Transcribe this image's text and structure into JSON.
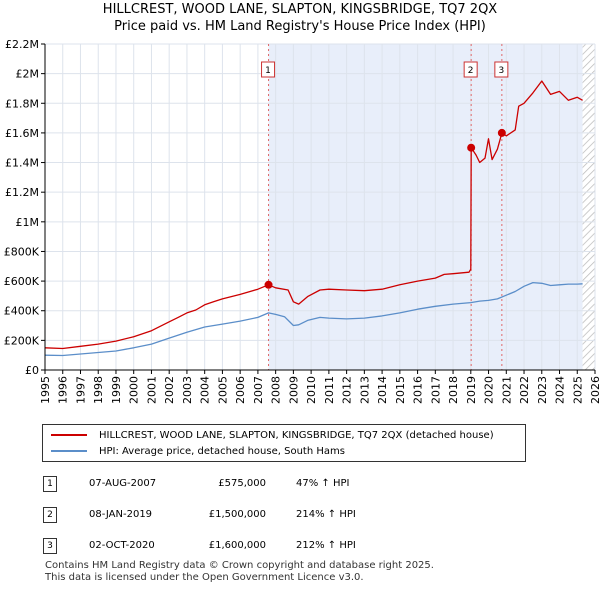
{
  "chart_data": {
    "type": "line",
    "title": "HILLCREST, WOOD LANE, SLAPTON, KINGSBRIDGE, TQ7 2QX",
    "subtitle": "Price paid vs. HM Land Registry's House Price Index (HPI)",
    "xlim": [
      1995,
      2026
    ],
    "ylim": [
      0,
      2200000
    ],
    "y_ticks": [
      {
        "value": 0,
        "label": "£0"
      },
      {
        "value": 200000,
        "label": "£200K"
      },
      {
        "value": 400000,
        "label": "£400K"
      },
      {
        "value": 600000,
        "label": "£600K"
      },
      {
        "value": 800000,
        "label": "£800K"
      },
      {
        "value": 1000000,
        "label": "£1M"
      },
      {
        "value": 1200000,
        "label": "£1.2M"
      },
      {
        "value": 1400000,
        "label": "£1.4M"
      },
      {
        "value": 1600000,
        "label": "£1.6M"
      },
      {
        "value": 1800000,
        "label": "£1.8M"
      },
      {
        "value": 2000000,
        "label": "£2M"
      },
      {
        "value": 2200000,
        "label": "£2.2M"
      }
    ],
    "x_ticks": [
      "1995",
      "1996",
      "1997",
      "1998",
      "1999",
      "2000",
      "2001",
      "2002",
      "2003",
      "2004",
      "2005",
      "2006",
      "2007",
      "2008",
      "2009",
      "2010",
      "2011",
      "2012",
      "2013",
      "2014",
      "2015",
      "2016",
      "2017",
      "2018",
      "2019",
      "2020",
      "2021",
      "2022",
      "2023",
      "2024",
      "2025",
      "2026"
    ],
    "shaded_region": [
      2007.6,
      2025.3
    ],
    "hatched_region": [
      2025.3,
      2026
    ],
    "series": [
      {
        "name": "HILLCREST, WOOD LANE, SLAPTON, KINGSBRIDGE, TQ7 2QX (detached house)",
        "color": "#cc0000",
        "points": [
          [
            1995.0,
            150000
          ],
          [
            1996.0,
            145000
          ],
          [
            1997.0,
            160000
          ],
          [
            1998.0,
            175000
          ],
          [
            1999.0,
            195000
          ],
          [
            2000.0,
            225000
          ],
          [
            2001.0,
            265000
          ],
          [
            2002.0,
            325000
          ],
          [
            2002.5,
            355000
          ],
          [
            2003.0,
            385000
          ],
          [
            2003.5,
            405000
          ],
          [
            2004.0,
            440000
          ],
          [
            2004.5,
            460000
          ],
          [
            2005.0,
            480000
          ],
          [
            2006.0,
            510000
          ],
          [
            2007.0,
            545000
          ],
          [
            2007.6,
            575000
          ],
          [
            2008.0,
            555000
          ],
          [
            2008.7,
            540000
          ],
          [
            2009.0,
            460000
          ],
          [
            2009.3,
            445000
          ],
          [
            2009.8,
            495000
          ],
          [
            2010.5,
            540000
          ],
          [
            2011.0,
            545000
          ],
          [
            2012.0,
            540000
          ],
          [
            2013.0,
            535000
          ],
          [
            2014.0,
            545000
          ],
          [
            2015.0,
            575000
          ],
          [
            2016.0,
            600000
          ],
          [
            2017.0,
            620000
          ],
          [
            2017.5,
            645000
          ],
          [
            2018.0,
            650000
          ],
          [
            2018.9,
            660000
          ],
          [
            2019.0,
            680000
          ],
          [
            2019.02,
            1500000
          ],
          [
            2019.3,
            1450000
          ],
          [
            2019.5,
            1400000
          ],
          [
            2019.8,
            1430000
          ],
          [
            2020.0,
            1560000
          ],
          [
            2020.2,
            1420000
          ],
          [
            2020.5,
            1490000
          ],
          [
            2020.75,
            1600000
          ],
          [
            2021.0,
            1580000
          ],
          [
            2021.5,
            1620000
          ],
          [
            2021.7,
            1780000
          ],
          [
            2022.0,
            1800000
          ],
          [
            2022.5,
            1870000
          ],
          [
            2023.0,
            1950000
          ],
          [
            2023.5,
            1860000
          ],
          [
            2024.0,
            1880000
          ],
          [
            2024.5,
            1820000
          ],
          [
            2025.0,
            1840000
          ],
          [
            2025.3,
            1820000
          ]
        ]
      },
      {
        "name": "HPI: Average price, detached house, South Hams",
        "color": "#5b8ec9",
        "points": [
          [
            1995.0,
            100000
          ],
          [
            1996.0,
            98000
          ],
          [
            1997.0,
            108000
          ],
          [
            1998.0,
            118000
          ],
          [
            1999.0,
            128000
          ],
          [
            2000.0,
            150000
          ],
          [
            2001.0,
            175000
          ],
          [
            2002.0,
            215000
          ],
          [
            2003.0,
            255000
          ],
          [
            2004.0,
            290000
          ],
          [
            2005.0,
            310000
          ],
          [
            2006.0,
            330000
          ],
          [
            2007.0,
            355000
          ],
          [
            2007.6,
            385000
          ],
          [
            2008.0,
            375000
          ],
          [
            2008.5,
            360000
          ],
          [
            2009.0,
            300000
          ],
          [
            2009.3,
            305000
          ],
          [
            2009.8,
            335000
          ],
          [
            2010.5,
            355000
          ],
          [
            2011.0,
            350000
          ],
          [
            2012.0,
            345000
          ],
          [
            2013.0,
            350000
          ],
          [
            2014.0,
            365000
          ],
          [
            2015.0,
            385000
          ],
          [
            2016.0,
            410000
          ],
          [
            2017.0,
            430000
          ],
          [
            2018.0,
            445000
          ],
          [
            2019.0,
            455000
          ],
          [
            2019.5,
            465000
          ],
          [
            2020.0,
            470000
          ],
          [
            2020.5,
            480000
          ],
          [
            2021.0,
            505000
          ],
          [
            2021.5,
            530000
          ],
          [
            2022.0,
            565000
          ],
          [
            2022.5,
            590000
          ],
          [
            2023.0,
            585000
          ],
          [
            2023.5,
            570000
          ],
          [
            2024.0,
            575000
          ],
          [
            2024.5,
            580000
          ],
          [
            2025.0,
            580000
          ],
          [
            2025.3,
            582000
          ]
        ]
      }
    ],
    "sales": [
      {
        "label": "1",
        "x": 2007.6,
        "y": 575000
      },
      {
        "label": "2",
        "x": 2019.02,
        "y": 1500000
      },
      {
        "label": "3",
        "x": 2020.75,
        "y": 1600000
      }
    ]
  },
  "legend": {
    "property": "HILLCREST, WOOD LANE, SLAPTON, KINGSBRIDGE, TQ7 2QX (detached house)",
    "hpi": "HPI: Average price, detached house, South Hams"
  },
  "transactions": [
    {
      "num": "1",
      "date": "07-AUG-2007",
      "price": "£575,000",
      "hpi": "47% ↑ HPI"
    },
    {
      "num": "2",
      "date": "08-JAN-2019",
      "price": "£1,500,000",
      "hpi": "214% ↑ HPI"
    },
    {
      "num": "3",
      "date": "02-OCT-2020",
      "price": "£1,600,000",
      "hpi": "212% ↑ HPI"
    }
  ],
  "footer": {
    "line1": "Contains HM Land Registry data © Crown copyright and database right 2025.",
    "line2": "This data is licensed under the Open Government Licence v3.0."
  },
  "colors": {
    "property": "#cc0000",
    "hpi": "#5b8ec9",
    "shade": "#e8eefa"
  }
}
